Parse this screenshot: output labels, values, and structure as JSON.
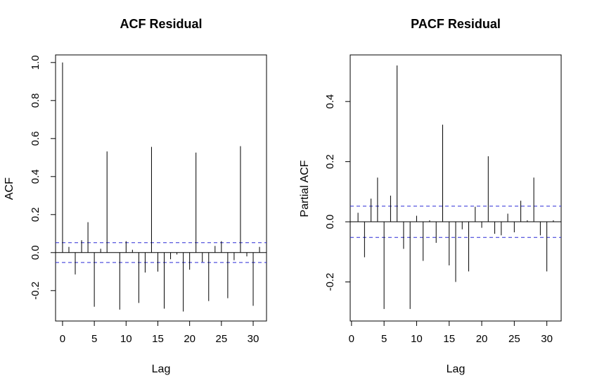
{
  "chart_data": [
    {
      "type": "bar",
      "title": "ACF Residual",
      "xlabel": "Lag",
      "ylabel": "ACF",
      "xlim": [
        -1.1,
        32.1
      ],
      "ylim": [
        -0.36,
        1.04
      ],
      "xticks": [
        0,
        5,
        10,
        15,
        20,
        25,
        30
      ],
      "yticks": [
        -0.2,
        0.0,
        0.2,
        0.4,
        0.6,
        0.8,
        1.0
      ],
      "ytick_labels": [
        "-0.2",
        "0.0",
        "0.2",
        "0.4",
        "0.6",
        "0.8",
        "1.0"
      ],
      "confidence_band": [
        -0.052,
        0.052
      ],
      "x": [
        0,
        1,
        2,
        3,
        4,
        5,
        6,
        7,
        8,
        9,
        10,
        11,
        12,
        13,
        14,
        15,
        16,
        17,
        18,
        19,
        20,
        21,
        22,
        23,
        24,
        25,
        26,
        27,
        28,
        29,
        30,
        31
      ],
      "values": [
        1.0,
        0.03,
        -0.115,
        0.065,
        0.16,
        -0.285,
        0.02,
        0.532,
        0.0,
        -0.3,
        0.06,
        0.015,
        -0.265,
        -0.105,
        0.556,
        -0.1,
        -0.295,
        -0.035,
        -0.01,
        -0.31,
        -0.09,
        0.526,
        -0.05,
        -0.255,
        0.035,
        0.06,
        -0.24,
        -0.04,
        0.56,
        -0.02,
        -0.28,
        0.03
      ]
    },
    {
      "type": "bar",
      "title": "PACF Residual",
      "xlabel": "Lag",
      "ylabel": "Partial ACF",
      "xlim": [
        -0.2,
        32.2
      ],
      "ylim": [
        -0.33,
        0.555
      ],
      "xticks": [
        0,
        5,
        10,
        15,
        20,
        25,
        30
      ],
      "yticks": [
        -0.2,
        0.0,
        0.2,
        0.4
      ],
      "ytick_labels": [
        "-0.2",
        "0.0",
        "0.2",
        "0.4"
      ],
      "confidence_band": [
        -0.052,
        0.052
      ],
      "x": [
        1,
        2,
        3,
        4,
        5,
        6,
        7,
        8,
        9,
        10,
        11,
        12,
        13,
        14,
        15,
        16,
        17,
        18,
        19,
        20,
        21,
        22,
        23,
        24,
        25,
        26,
        27,
        28,
        29,
        30,
        31
      ],
      "values": [
        0.03,
        -0.118,
        0.077,
        0.147,
        -0.29,
        0.087,
        0.52,
        -0.09,
        -0.29,
        0.02,
        -0.13,
        0.005,
        -0.07,
        0.323,
        -0.145,
        -0.2,
        -0.025,
        -0.165,
        0.05,
        -0.02,
        0.218,
        -0.04,
        -0.045,
        0.027,
        -0.035,
        0.07,
        0.005,
        0.147,
        -0.045,
        -0.165,
        0.005
      ]
    }
  ]
}
